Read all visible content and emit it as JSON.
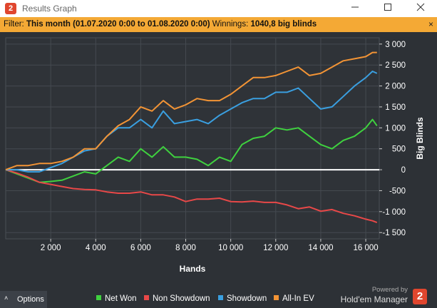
{
  "window": {
    "title": "Results Graph",
    "app_icon": "2",
    "minimize_icon": "minimize-icon",
    "maximize_icon": "maximize-icon",
    "close_icon": "close-icon"
  },
  "filter": {
    "label": "Filter:",
    "value": "This month (01.07.2020 0:00 to 01.08.2020 0:00)",
    "winnings_label": "Winnings:",
    "winnings_value": "1040,8 big blinds",
    "close": "×",
    "bar_color": "#f4a935"
  },
  "options": {
    "label": "Options",
    "chevron": "˄"
  },
  "legend": [
    {
      "label": "Net Won",
      "color": "#3fd13f"
    },
    {
      "label": "Non Showdown",
      "color": "#e84848"
    },
    {
      "label": "Showdown",
      "color": "#3a9fe0"
    },
    {
      "label": "All-In EV",
      "color": "#f39435"
    }
  ],
  "branding": {
    "powered_by": "Powered by",
    "name": "Hold'em Manager",
    "logo": "2"
  },
  "chart_data": {
    "type": "line",
    "xlabel": "Hands",
    "ylabel": "Big Blinds",
    "xlim": [
      0,
      16600
    ],
    "ylim": [
      -1650,
      3150
    ],
    "x_ticks": [
      2000,
      4000,
      6000,
      8000,
      10000,
      12000,
      14000,
      16000
    ],
    "x_tick_labels": [
      "2 000",
      "4 000",
      "6 000",
      "8 000",
      "10 000",
      "12 000",
      "14 000",
      "16 000"
    ],
    "y_ticks": [
      3000,
      2500,
      2000,
      1500,
      1000,
      500,
      0,
      -500,
      -1000,
      -1500
    ],
    "y_tick_labels": [
      "3 000",
      "2 500",
      "2 000",
      "1 500",
      "1 000",
      "500",
      "0",
      "-500",
      "-1 000",
      "-1 500"
    ],
    "grid": true,
    "legend_position": "bottom",
    "x": [
      0,
      500,
      1000,
      1500,
      2000,
      2500,
      3000,
      3500,
      4000,
      4500,
      5000,
      5500,
      6000,
      6500,
      7000,
      7500,
      8000,
      8500,
      9000,
      9500,
      10000,
      10500,
      11000,
      11500,
      12000,
      12500,
      13000,
      13500,
      14000,
      14500,
      15000,
      15500,
      16000,
      16300,
      16500
    ],
    "series": [
      {
        "name": "Net Won",
        "color": "#3fd13f",
        "values": [
          0,
          -100,
          -200,
          -300,
          -280,
          -250,
          -150,
          -50,
          -100,
          100,
          300,
          200,
          500,
          300,
          550,
          300,
          300,
          250,
          100,
          300,
          200,
          600,
          750,
          800,
          1000,
          950,
          1000,
          800,
          600,
          500,
          700,
          800,
          1000,
          1200,
          1050
        ]
      },
      {
        "name": "Non Showdown",
        "color": "#e84848",
        "values": [
          0,
          -80,
          -180,
          -300,
          -350,
          -400,
          -450,
          -470,
          -480,
          -530,
          -560,
          -560,
          -530,
          -600,
          -600,
          -650,
          -760,
          -700,
          -700,
          -680,
          -760,
          -770,
          -750,
          -780,
          -780,
          -840,
          -930,
          -890,
          -990,
          -950,
          -1040,
          -1100,
          -1180,
          -1220,
          -1260
        ]
      },
      {
        "name": "Showdown",
        "color": "#3a9fe0",
        "values": [
          0,
          0,
          -50,
          -50,
          50,
          150,
          300,
          450,
          500,
          800,
          1000,
          1000,
          1200,
          1000,
          1400,
          1100,
          1150,
          1200,
          1100,
          1300,
          1450,
          1600,
          1700,
          1700,
          1850,
          1850,
          1950,
          1700,
          1450,
          1500,
          1750,
          2000,
          2200,
          2350,
          2300
        ]
      },
      {
        "name": "All-In EV",
        "color": "#f39435",
        "values": [
          0,
          100,
          100,
          150,
          150,
          200,
          300,
          500,
          500,
          800,
          1050,
          1200,
          1500,
          1400,
          1650,
          1450,
          1550,
          1700,
          1650,
          1650,
          1800,
          2000,
          2200,
          2200,
          2250,
          2350,
          2450,
          2250,
          2300,
          2450,
          2600,
          2650,
          2700,
          2800,
          2800
        ]
      }
    ]
  }
}
